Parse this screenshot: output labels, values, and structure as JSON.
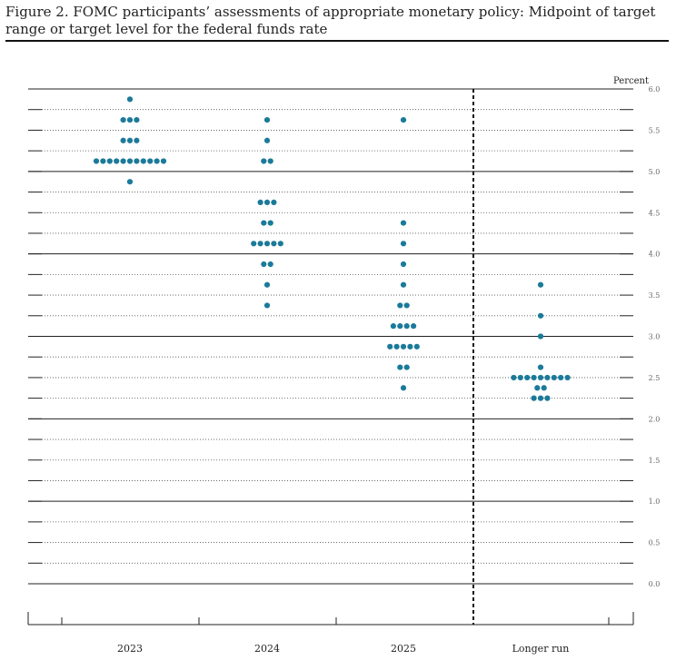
{
  "title": "Figure 2.  FOMC participants’ assessments of appropriate monetary policy: Midpoint of target range or target level for the federal funds rate",
  "chart_data": {
    "type": "scatter",
    "style": "dot-plot",
    "ylabel": "Percent",
    "ylim": [
      0,
      6
    ],
    "yticks": [
      "0.0",
      "0.5",
      "1.0",
      "1.5",
      "2.0",
      "2.5",
      "3.0",
      "3.5",
      "4.0",
      "4.5",
      "5.0",
      "5.5",
      "6.0"
    ],
    "categories": [
      "2023",
      "2024",
      "2025",
      "Longer run"
    ],
    "dot_color": "#1b7a9a",
    "separator": "dashed vertical line between 2025 and Longer run",
    "series": [
      {
        "name": "2023",
        "points": [
          {
            "y": 5.875,
            "count": 1
          },
          {
            "y": 5.625,
            "count": 3
          },
          {
            "y": 5.375,
            "count": 3
          },
          {
            "y": 5.125,
            "count": 11
          },
          {
            "y": 4.875,
            "count": 1
          }
        ]
      },
      {
        "name": "2024",
        "points": [
          {
            "y": 5.625,
            "count": 1
          },
          {
            "y": 5.375,
            "count": 1
          },
          {
            "y": 5.125,
            "count": 2
          },
          {
            "y": 4.625,
            "count": 3
          },
          {
            "y": 4.375,
            "count": 2
          },
          {
            "y": 4.125,
            "count": 5
          },
          {
            "y": 3.875,
            "count": 2
          },
          {
            "y": 3.625,
            "count": 1
          },
          {
            "y": 3.375,
            "count": 1
          }
        ]
      },
      {
        "name": "2025",
        "points": [
          {
            "y": 5.625,
            "count": 1
          },
          {
            "y": 4.375,
            "count": 1
          },
          {
            "y": 4.125,
            "count": 1
          },
          {
            "y": 3.875,
            "count": 1
          },
          {
            "y": 3.625,
            "count": 1
          },
          {
            "y": 3.375,
            "count": 2
          },
          {
            "y": 3.125,
            "count": 4
          },
          {
            "y": 2.875,
            "count": 5
          },
          {
            "y": 2.625,
            "count": 2
          },
          {
            "y": 2.375,
            "count": 1
          }
        ]
      },
      {
        "name": "Longer run",
        "points": [
          {
            "y": 3.625,
            "count": 1
          },
          {
            "y": 3.25,
            "count": 1
          },
          {
            "y": 3.0,
            "count": 1
          },
          {
            "y": 2.625,
            "count": 1
          },
          {
            "y": 2.5,
            "count": 9
          },
          {
            "y": 2.375,
            "count": 2
          },
          {
            "y": 2.25,
            "count": 3
          }
        ]
      }
    ]
  }
}
